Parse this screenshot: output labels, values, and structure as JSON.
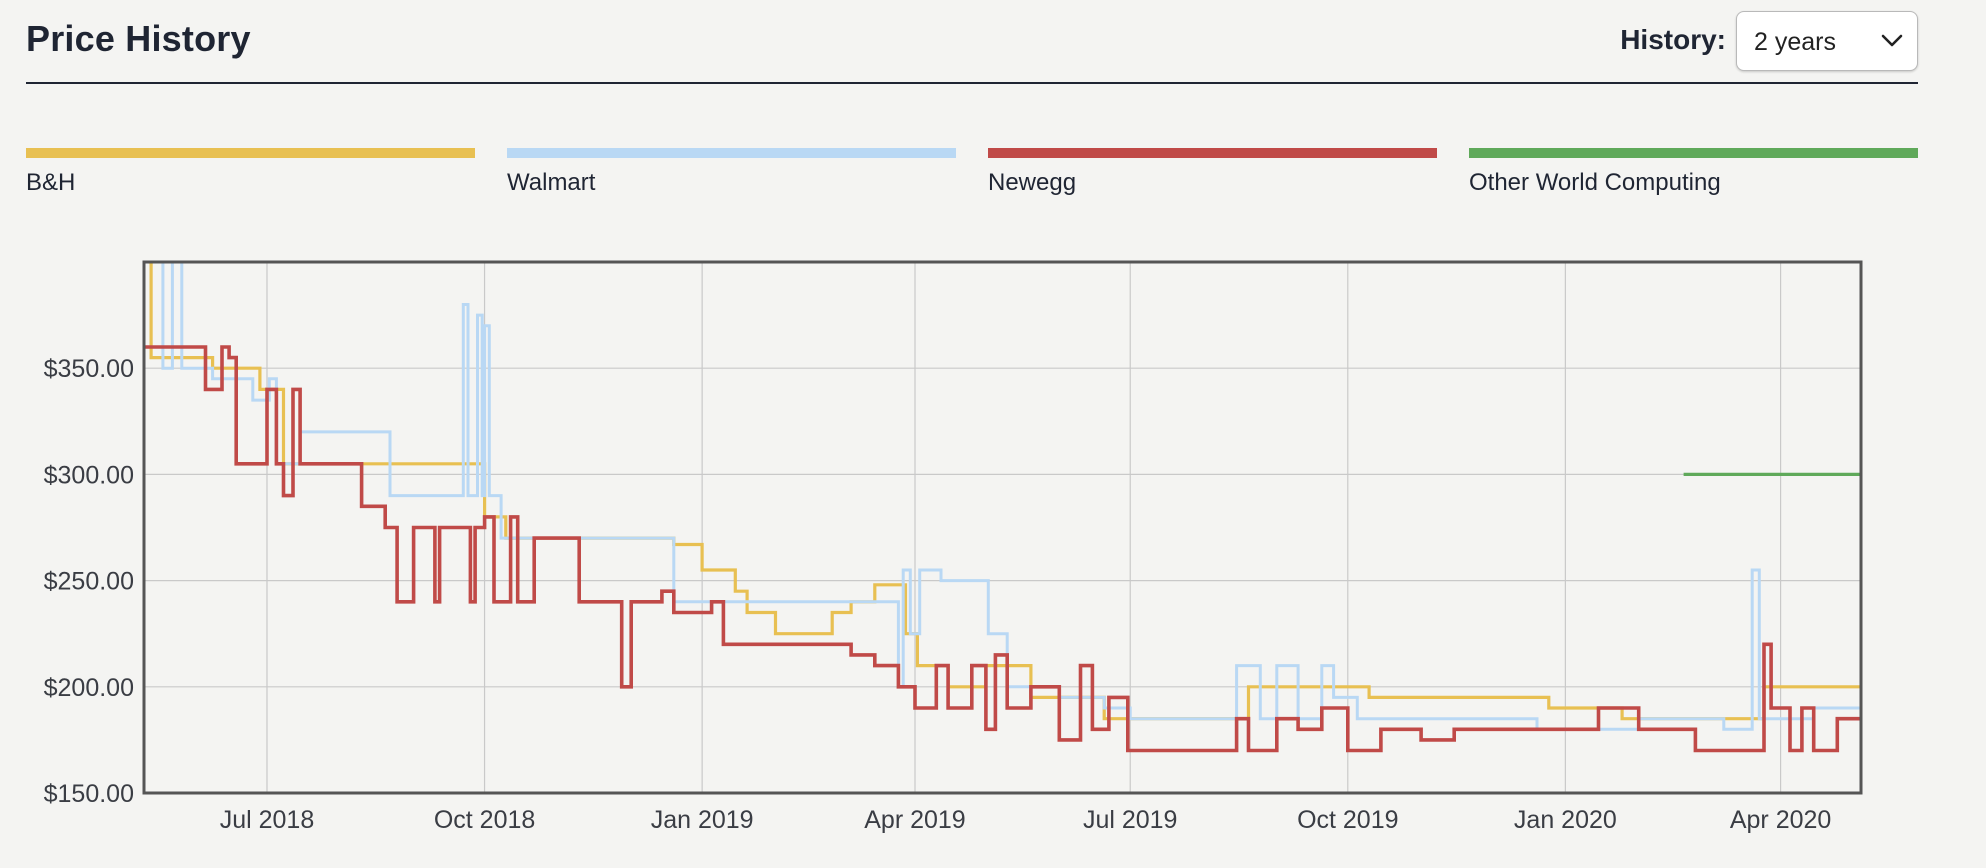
{
  "header": {
    "title": "Price History",
    "history_label": "History:",
    "history_value": "2 years"
  },
  "colors": {
    "B&H": "#e8c052",
    "Walmart": "#b9d8f4",
    "Newegg": "#c04a48",
    "Other World Computing": "#5fa95a",
    "grid": "#c9c9c9",
    "frame": "#555555"
  },
  "icons": {
    "dropdown": "chevron-down-icon"
  },
  "chart_data": {
    "type": "line",
    "step": true,
    "xlim": [
      "2018-05-10",
      "2020-05-05"
    ],
    "ylim": [
      150,
      400
    ],
    "yticks": [
      150,
      200,
      250,
      300,
      350
    ],
    "ytick_labels": [
      "$150.00",
      "$200.00",
      "$250.00",
      "$300.00",
      "$350.00"
    ],
    "xticks": [
      "2018-07-01",
      "2018-10-01",
      "2019-01-01",
      "2019-04-01",
      "2019-07-01",
      "2019-10-01",
      "2020-01-01",
      "2020-04-01"
    ],
    "xtick_labels": [
      "Jul 2018",
      "Oct 2018",
      "Jan 2019",
      "Apr 2019",
      "Jul 2019",
      "Oct 2019",
      "Jan 2020",
      "Apr 2020"
    ],
    "grid": true,
    "legend_position": "top",
    "series": [
      {
        "name": "B&H",
        "points": [
          [
            "2018-05-12",
            400
          ],
          [
            "2018-05-13",
            355
          ],
          [
            "2018-06-08",
            350
          ],
          [
            "2018-06-28",
            340
          ],
          [
            "2018-07-08",
            305
          ],
          [
            "2018-08-30",
            305
          ],
          [
            "2018-10-01",
            280
          ],
          [
            "2018-10-10",
            270
          ],
          [
            "2018-12-20",
            267
          ],
          [
            "2019-01-01",
            255
          ],
          [
            "2019-01-15",
            245
          ],
          [
            "2019-01-20",
            235
          ],
          [
            "2019-02-01",
            225
          ],
          [
            "2019-02-25",
            235
          ],
          [
            "2019-03-05",
            240
          ],
          [
            "2019-03-15",
            248
          ],
          [
            "2019-03-25",
            248
          ],
          [
            "2019-03-28",
            225
          ],
          [
            "2019-04-02",
            210
          ],
          [
            "2019-04-15",
            200
          ],
          [
            "2019-05-01",
            210
          ],
          [
            "2019-05-20",
            195
          ],
          [
            "2019-06-20",
            185
          ],
          [
            "2019-07-05",
            185
          ],
          [
            "2019-08-20",
            200
          ],
          [
            "2019-09-25",
            200
          ],
          [
            "2019-10-10",
            195
          ],
          [
            "2019-11-20",
            195
          ],
          [
            "2019-12-25",
            190
          ],
          [
            "2020-01-25",
            185
          ],
          [
            "2020-02-20",
            185
          ],
          [
            "2020-03-05",
            185
          ],
          [
            "2020-03-25",
            200
          ],
          [
            "2020-05-05",
            200
          ]
        ]
      },
      {
        "name": "Walmart",
        "points": [
          [
            "2018-05-12",
            400
          ],
          [
            "2018-05-18",
            350
          ],
          [
            "2018-05-22",
            400
          ],
          [
            "2018-05-26",
            350
          ],
          [
            "2018-06-08",
            345
          ],
          [
            "2018-06-25",
            335
          ],
          [
            "2018-07-02",
            345
          ],
          [
            "2018-07-05",
            305
          ],
          [
            "2018-07-15",
            320
          ],
          [
            "2018-08-10",
            320
          ],
          [
            "2018-08-22",
            290
          ],
          [
            "2018-09-20",
            290
          ],
          [
            "2018-09-22",
            380
          ],
          [
            "2018-09-24",
            290
          ],
          [
            "2018-09-28",
            375
          ],
          [
            "2018-09-30",
            290
          ],
          [
            "2018-10-01",
            370
          ],
          [
            "2018-10-03",
            290
          ],
          [
            "2018-10-08",
            270
          ],
          [
            "2018-12-15",
            270
          ],
          [
            "2018-12-20",
            240
          ],
          [
            "2019-01-20",
            240
          ],
          [
            "2019-03-25",
            200
          ],
          [
            "2019-03-27",
            255
          ],
          [
            "2019-03-30",
            225
          ],
          [
            "2019-04-03",
            255
          ],
          [
            "2019-04-12",
            250
          ],
          [
            "2019-04-28",
            250
          ],
          [
            "2019-05-02",
            225
          ],
          [
            "2019-05-10",
            200
          ],
          [
            "2019-06-01",
            195
          ],
          [
            "2019-06-20",
            190
          ],
          [
            "2019-07-01",
            185
          ],
          [
            "2019-08-10",
            185
          ],
          [
            "2019-08-15",
            210
          ],
          [
            "2019-08-25",
            185
          ],
          [
            "2019-09-01",
            210
          ],
          [
            "2019-09-10",
            185
          ],
          [
            "2019-09-20",
            210
          ],
          [
            "2019-09-25",
            195
          ],
          [
            "2019-10-05",
            185
          ],
          [
            "2019-11-15",
            185
          ],
          [
            "2019-12-20",
            180
          ],
          [
            "2020-02-01",
            185
          ],
          [
            "2020-02-15",
            185
          ],
          [
            "2020-03-08",
            180
          ],
          [
            "2020-03-18",
            180
          ],
          [
            "2020-03-20",
            255
          ],
          [
            "2020-03-23",
            185
          ],
          [
            "2020-04-15",
            190
          ],
          [
            "2020-05-05",
            190
          ]
        ]
      },
      {
        "name": "Newegg",
        "points": [
          [
            "2018-05-10",
            360
          ],
          [
            "2018-06-05",
            340
          ],
          [
            "2018-06-12",
            360
          ],
          [
            "2018-06-15",
            355
          ],
          [
            "2018-06-18",
            305
          ],
          [
            "2018-06-30",
            305
          ],
          [
            "2018-07-01",
            340
          ],
          [
            "2018-07-05",
            305
          ],
          [
            "2018-07-08",
            290
          ],
          [
            "2018-07-12",
            340
          ],
          [
            "2018-07-15",
            305
          ],
          [
            "2018-08-05",
            305
          ],
          [
            "2018-08-10",
            285
          ],
          [
            "2018-08-20",
            275
          ],
          [
            "2018-08-25",
            240
          ],
          [
            "2018-09-01",
            275
          ],
          [
            "2018-09-10",
            240
          ],
          [
            "2018-09-12",
            275
          ],
          [
            "2018-09-25",
            240
          ],
          [
            "2018-09-27",
            275
          ],
          [
            "2018-10-01",
            280
          ],
          [
            "2018-10-05",
            240
          ],
          [
            "2018-10-12",
            280
          ],
          [
            "2018-10-15",
            240
          ],
          [
            "2018-10-22",
            270
          ],
          [
            "2018-11-10",
            240
          ],
          [
            "2018-11-25",
            240
          ],
          [
            "2018-11-28",
            200
          ],
          [
            "2018-12-02",
            240
          ],
          [
            "2018-12-15",
            245
          ],
          [
            "2018-12-20",
            235
          ],
          [
            "2019-01-05",
            240
          ],
          [
            "2019-01-10",
            220
          ],
          [
            "2019-02-15",
            220
          ],
          [
            "2019-03-05",
            215
          ],
          [
            "2019-03-15",
            210
          ],
          [
            "2019-03-25",
            200
          ],
          [
            "2019-04-01",
            190
          ],
          [
            "2019-04-10",
            210
          ],
          [
            "2019-04-15",
            190
          ],
          [
            "2019-04-25",
            210
          ],
          [
            "2019-05-01",
            180
          ],
          [
            "2019-05-05",
            215
          ],
          [
            "2019-05-10",
            190
          ],
          [
            "2019-05-20",
            200
          ],
          [
            "2019-06-01",
            175
          ],
          [
            "2019-06-10",
            210
          ],
          [
            "2019-06-15",
            180
          ],
          [
            "2019-06-22",
            195
          ],
          [
            "2019-06-30",
            170
          ],
          [
            "2019-07-15",
            170
          ],
          [
            "2019-08-15",
            185
          ],
          [
            "2019-08-20",
            170
          ],
          [
            "2019-09-01",
            185
          ],
          [
            "2019-09-10",
            180
          ],
          [
            "2019-09-20",
            190
          ],
          [
            "2019-10-01",
            170
          ],
          [
            "2019-10-15",
            180
          ],
          [
            "2019-11-01",
            175
          ],
          [
            "2019-11-15",
            180
          ],
          [
            "2019-12-10",
            180
          ],
          [
            "2020-01-01",
            180
          ],
          [
            "2020-01-15",
            190
          ],
          [
            "2020-02-01",
            180
          ],
          [
            "2020-02-20",
            180
          ],
          [
            "2020-02-25",
            170
          ],
          [
            "2020-03-25",
            220
          ],
          [
            "2020-03-28",
            190
          ],
          [
            "2020-04-05",
            170
          ],
          [
            "2020-04-10",
            190
          ],
          [
            "2020-04-15",
            170
          ],
          [
            "2020-04-25",
            185
          ],
          [
            "2020-05-05",
            185
          ]
        ]
      },
      {
        "name": "Other World Computing",
        "points": [
          [
            "2020-02-20",
            300
          ],
          [
            "2020-05-05",
            300
          ]
        ]
      }
    ]
  }
}
